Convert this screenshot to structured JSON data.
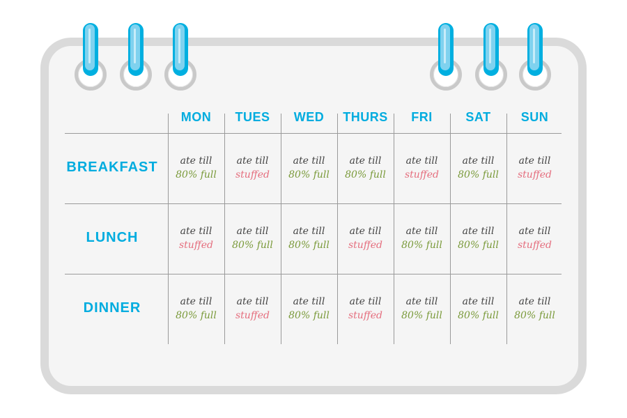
{
  "days": [
    "MON",
    "TUES",
    "WED",
    "THURS",
    "FRI",
    "SAT",
    "SUN"
  ],
  "line1": "ate till",
  "colors": {
    "accent": "#00acdf",
    "full": "#7a9a3a",
    "stuffed": "#e56e7e"
  },
  "rows": [
    {
      "meal": "BREAKFAST",
      "cells": [
        "80% full",
        "stuffed",
        "80% full",
        "80% full",
        "stuffed",
        "80% full",
        "stuffed"
      ]
    },
    {
      "meal": "LUNCH",
      "cells": [
        "stuffed",
        "80% full",
        "80% full",
        "stuffed",
        "80% full",
        "80% full",
        "stuffed"
      ]
    },
    {
      "meal": "DINNER",
      "cells": [
        "80% full",
        "stuffed",
        "80% full",
        "stuffed",
        "80% full",
        "80% full",
        "80% full"
      ]
    }
  ]
}
